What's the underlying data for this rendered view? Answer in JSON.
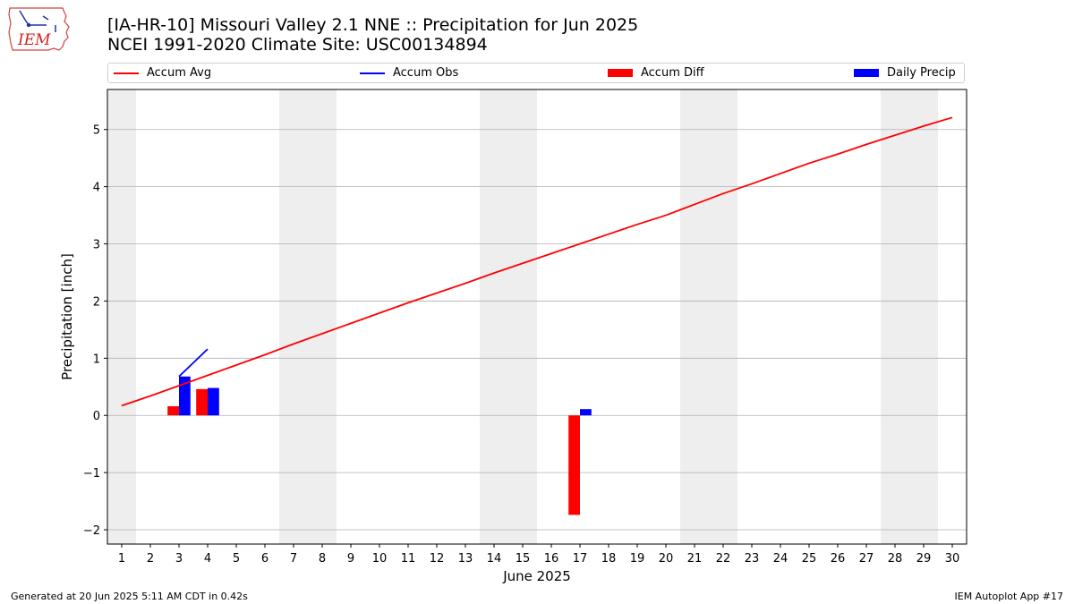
{
  "header": {
    "title_line1": "[IA-HR-10] Missouri Valley 2.1 NNE :: Precipitation for Jun 2025",
    "title_line2": "NCEI 1991-2020 Climate Site: USC00134894",
    "logo_text": "IEM"
  },
  "footer": {
    "left": "Generated at 20 Jun 2025 5:11 AM CDT in 0.42s",
    "right": "IEM Autoplot App #17"
  },
  "colors": {
    "accum_avg": "#ff0000",
    "accum_obs": "#0000ff",
    "accum_diff": "#ff0000",
    "daily_precip": "#0000ff",
    "weekend_band": "#eeeeee",
    "grid": "#b0b0b0"
  },
  "chart_data": {
    "type": "bar",
    "title": "[IA-HR-10] Missouri Valley 2.1 NNE :: Precipitation for Jun 2025",
    "subtitle": "NCEI 1991-2020 Climate Site: USC00134894",
    "xlabel": "June 2025",
    "ylabel": "Precipitation [inch]",
    "xlim": [
      0.5,
      30.5
    ],
    "ylim": [
      -2.25,
      5.7
    ],
    "yticks": [
      -2,
      -1,
      0,
      1,
      2,
      3,
      4,
      5
    ],
    "ytick_labels": [
      "−2",
      "−1",
      "0",
      "1",
      "2",
      "3",
      "4",
      "5"
    ],
    "x": [
      1,
      2,
      3,
      4,
      5,
      6,
      7,
      8,
      9,
      10,
      11,
      12,
      13,
      14,
      15,
      16,
      17,
      18,
      19,
      20,
      21,
      22,
      23,
      24,
      25,
      26,
      27,
      28,
      29,
      30
    ],
    "xtick_labels": [
      "1",
      "2",
      "3",
      "4",
      "5",
      "6",
      "7",
      "8",
      "9",
      "10",
      "11",
      "12",
      "13",
      "14",
      "15",
      "16",
      "17",
      "18",
      "19",
      "20",
      "21",
      "22",
      "23",
      "24",
      "25",
      "26",
      "27",
      "28",
      "29",
      "30"
    ],
    "grid": "horizontal",
    "legend_placement": "top",
    "weekend_bands": [
      [
        0.5,
        1.5
      ],
      [
        6.5,
        8.5
      ],
      [
        13.5,
        15.5
      ],
      [
        20.5,
        22.5
      ],
      [
        27.5,
        29.5
      ]
    ],
    "series": [
      {
        "name": "Accum Avg",
        "type": "line",
        "x": [
          1,
          2,
          3,
          4,
          5,
          6,
          7,
          8,
          9,
          10,
          11,
          12,
          13,
          14,
          15,
          16,
          17,
          18,
          19,
          20,
          21,
          22,
          23,
          24,
          25,
          26,
          27,
          28,
          29,
          30
        ],
        "values": [
          0.17,
          0.34,
          0.52,
          0.7,
          0.88,
          1.06,
          1.25,
          1.43,
          1.61,
          1.79,
          1.97,
          2.14,
          2.31,
          2.49,
          2.66,
          2.83,
          3.0,
          3.17,
          3.34,
          3.5,
          3.69,
          3.88,
          4.05,
          4.23,
          4.41,
          4.57,
          4.74,
          4.9,
          5.06,
          5.21
        ]
      },
      {
        "name": "Accum Obs",
        "type": "line",
        "x": [
          3,
          4
        ],
        "values": [
          0.68,
          1.16
        ]
      },
      {
        "name": "Accum Diff",
        "type": "bar",
        "x": [
          3,
          4,
          17
        ],
        "values": [
          0.16,
          0.46,
          -1.74
        ]
      },
      {
        "name": "Daily Precip",
        "type": "bar",
        "x": [
          3,
          4,
          17
        ],
        "values": [
          0.68,
          0.48,
          0.11
        ]
      }
    ]
  }
}
